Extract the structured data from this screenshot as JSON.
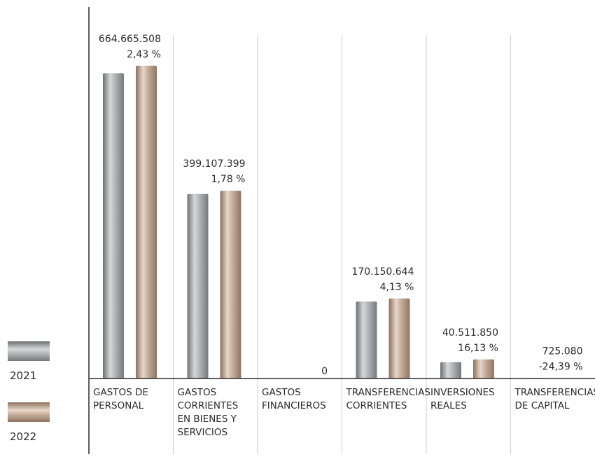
{
  "chart_data": {
    "type": "bar",
    "categories": [
      [
        "GASTOS DE",
        "PERSONAL"
      ],
      [
        "GASTOS",
        "CORRIENTES",
        "EN BIENES Y",
        "SERVICIOS"
      ],
      [
        "GASTOS",
        "FINANCIEROS"
      ],
      [
        "TRANSFERENCIAS",
        "CORRIENTES"
      ],
      [
        "INVERSIONES",
        "REALES"
      ],
      [
        "TRANSFERENCIAS",
        "DE CAPITAL"
      ]
    ],
    "series": [
      {
        "name": "2021",
        "values": [
          648900000,
          392100000,
          0,
          163400000,
          34880000,
          958900
        ]
      },
      {
        "name": "2022",
        "values": [
          664665508,
          399107399,
          0,
          170150644,
          40511850,
          725080
        ]
      }
    ],
    "value_labels": [
      "664.665.508",
      "399.107.399",
      "0",
      "170.150.644",
      "40.511.850",
      "725.080"
    ],
    "change_labels": [
      "2,43 %",
      "1,78 %",
      "",
      "4,13 %",
      "16,13 %",
      "-24,39 %"
    ],
    "ylim": [
      0,
      715000000
    ],
    "grid": "vertical separators",
    "legend_position": "left",
    "colors": {
      "2021": "#9a9b9e",
      "2022": "#b09a86",
      "axis": "#2b2b2b",
      "separator": "#cfcfcf"
    }
  }
}
